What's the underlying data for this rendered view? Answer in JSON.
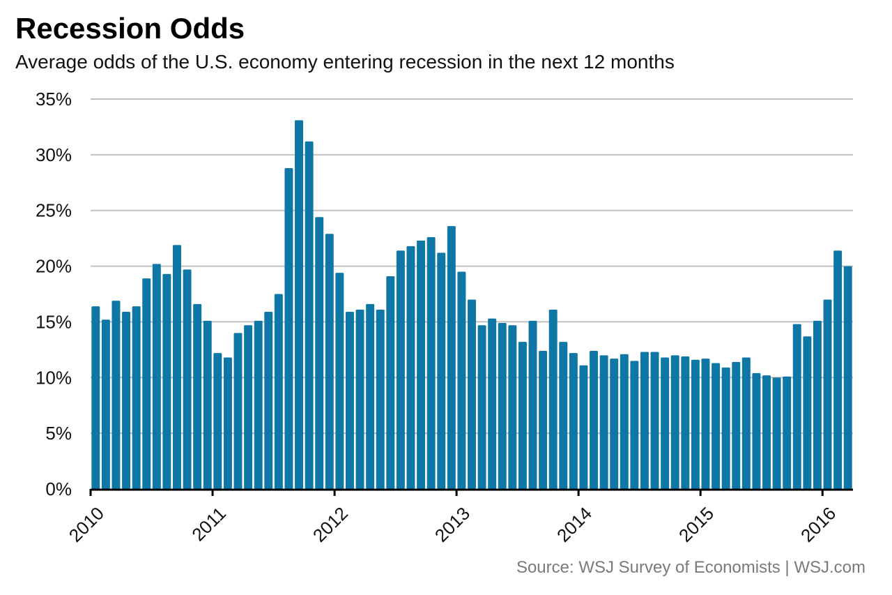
{
  "title": "Recession Odds",
  "subtitle": "Average odds of the U.S. economy entering recession in the next 12 months",
  "source": "Source: WSJ Survey of Economists  |  WSJ.com",
  "colors": {
    "bar": "#0e77a6",
    "grid": "#c0c0c0",
    "axis": "#000000"
  },
  "chart_data": {
    "type": "bar",
    "title": "Recession Odds",
    "subtitle": "Average odds of the U.S. economy entering recession in the next 12 months",
    "xlabel": "",
    "ylabel": "",
    "ylim": [
      0,
      35
    ],
    "yticks": [
      "0%",
      "5%",
      "10%",
      "15%",
      "20%",
      "25%",
      "30%",
      "35%"
    ],
    "xticks": [
      "2010",
      "2011",
      "2012",
      "2013",
      "2014",
      "2015",
      "2016"
    ],
    "grid": true,
    "frequency": "monthly",
    "categories": [
      "2010-01",
      "2010-02",
      "2010-03",
      "2010-04",
      "2010-05",
      "2010-06",
      "2010-07",
      "2010-08",
      "2010-09",
      "2010-10",
      "2010-11",
      "2010-12",
      "2011-01",
      "2011-02",
      "2011-03",
      "2011-04",
      "2011-05",
      "2011-06",
      "2011-07",
      "2011-08",
      "2011-09",
      "2011-10",
      "2011-11",
      "2011-12",
      "2012-01",
      "2012-02",
      "2012-03",
      "2012-04",
      "2012-05",
      "2012-06",
      "2012-07",
      "2012-08",
      "2012-09",
      "2012-10",
      "2012-11",
      "2012-12",
      "2013-01",
      "2013-02",
      "2013-03",
      "2013-04",
      "2013-05",
      "2013-06",
      "2013-07",
      "2013-08",
      "2013-09",
      "2013-10",
      "2013-11",
      "2013-12",
      "2014-01",
      "2014-02",
      "2014-03",
      "2014-04",
      "2014-05",
      "2014-06",
      "2014-07",
      "2014-08",
      "2014-09",
      "2014-10",
      "2014-11",
      "2014-12",
      "2015-01",
      "2015-02",
      "2015-03",
      "2015-04",
      "2015-05",
      "2015-06",
      "2015-07",
      "2015-08",
      "2015-09",
      "2015-10",
      "2015-11",
      "2015-12",
      "2016-01",
      "2016-02",
      "2016-03"
    ],
    "values": [
      16.4,
      15.2,
      16.9,
      15.9,
      16.4,
      18.9,
      20.2,
      19.3,
      21.9,
      19.7,
      16.6,
      15.1,
      12.2,
      11.8,
      14.0,
      14.7,
      15.1,
      15.9,
      17.5,
      28.8,
      33.1,
      31.2,
      24.4,
      22.9,
      19.4,
      15.9,
      16.1,
      16.6,
      16.1,
      19.1,
      21.4,
      21.8,
      22.3,
      22.6,
      21.2,
      23.6,
      19.5,
      17.0,
      14.7,
      15.3,
      14.9,
      14.7,
      13.2,
      15.1,
      12.4,
      16.1,
      13.2,
      12.2,
      11.1,
      12.4,
      12.0,
      11.7,
      12.1,
      11.5,
      12.3,
      12.3,
      11.8,
      12.0,
      11.9,
      11.6,
      11.7,
      11.3,
      10.9,
      11.4,
      11.8,
      10.4,
      10.2,
      10.0,
      10.1,
      14.8,
      13.7,
      15.1,
      17.0,
      21.4,
      20.0
    ]
  }
}
